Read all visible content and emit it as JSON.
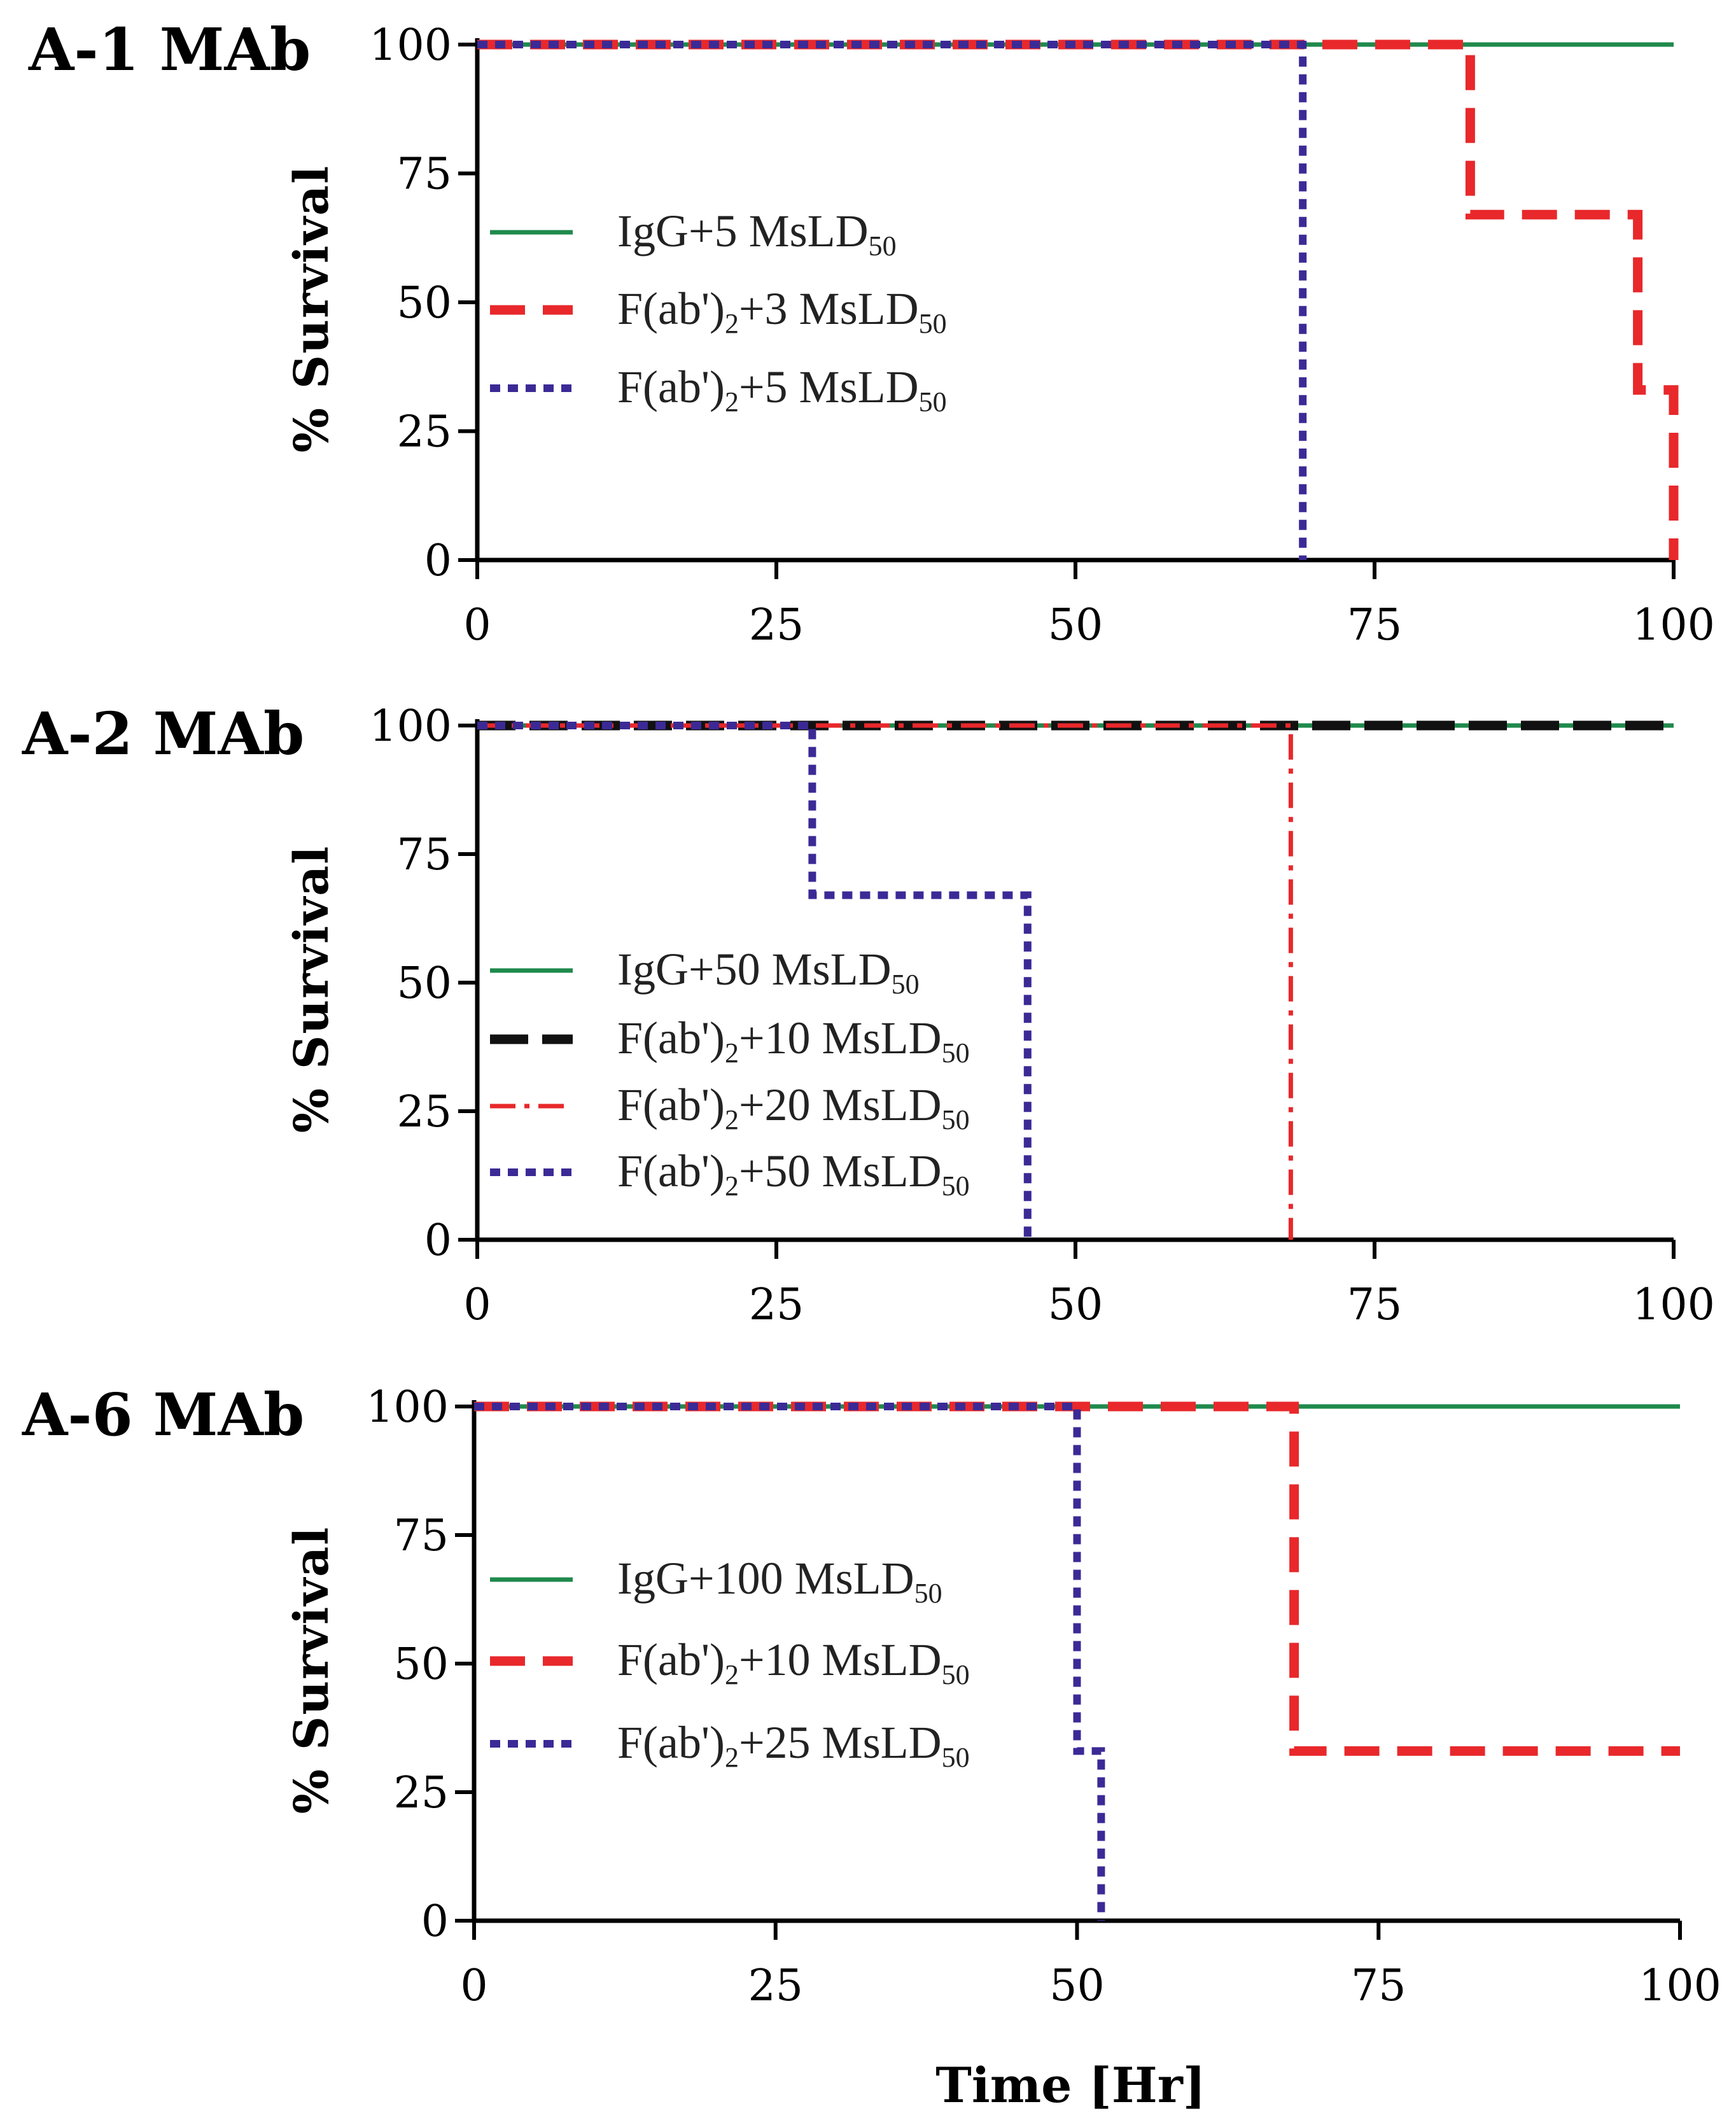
{
  "chart_data": [
    {
      "type": "line",
      "title": "A-1 MAb",
      "ylabel": "% Survival",
      "xlabel": "",
      "xlim": [
        0,
        100
      ],
      "ylim": [
        0,
        100
      ],
      "xticks": [
        "0",
        "25",
        "50",
        "75",
        "100"
      ],
      "yticks": [
        "0",
        "25",
        "50",
        "75",
        "100"
      ],
      "series": [
        {
          "name": "IgG+5 MsLD",
          "sub": "50",
          "color": "#1f8a4c",
          "style": "solid",
          "x": [
            0,
            100
          ],
          "y": [
            100,
            100
          ]
        },
        {
          "name": "F(ab')+3 MsLD",
          "name_pre": "F(ab')",
          "name_mid": "2",
          "name_post": "+3 MsLD",
          "sub": "50",
          "color": "#e8282b",
          "style": "dashed",
          "x": [
            0,
            83,
            83,
            97,
            97,
            100,
            100
          ],
          "y": [
            100,
            100,
            67,
            67,
            33,
            33,
            0
          ]
        },
        {
          "name": "F(ab')+5 MsLD",
          "name_pre": "F(ab')",
          "name_mid": "2",
          "name_post": "+5 MsLD",
          "sub": "50",
          "color": "#3b2a96",
          "style": "dotted",
          "x": [
            0,
            69,
            69
          ],
          "y": [
            100,
            100,
            0
          ]
        }
      ]
    },
    {
      "type": "line",
      "title": "A-2 MAb",
      "ylabel": "% Survival",
      "xlabel": "",
      "xlim": [
        0,
        100
      ],
      "ylim": [
        0,
        100
      ],
      "xticks": [
        "0",
        "25",
        "50",
        "75",
        "100"
      ],
      "yticks": [
        "0",
        "25",
        "50",
        "75",
        "100"
      ],
      "series": [
        {
          "name": "IgG+50 MsLD",
          "sub": "50",
          "color": "#1f8a4c",
          "style": "solid",
          "x": [
            0,
            100
          ],
          "y": [
            100,
            100
          ]
        },
        {
          "name": "F(ab')+10 MsLD",
          "name_pre": "F(ab')",
          "name_mid": "2",
          "name_post": "+10 MsLD",
          "sub": "50",
          "color": "#111111",
          "style": "longdash",
          "x": [
            0,
            100
          ],
          "y": [
            100,
            100
          ]
        },
        {
          "name": "F(ab')+20 MsLD",
          "name_pre": "F(ab')",
          "name_mid": "2",
          "name_post": "+20 MsLD",
          "sub": "50",
          "color": "#e8282b",
          "style": "dashdot",
          "x": [
            0,
            68,
            68
          ],
          "y": [
            100,
            100,
            0
          ]
        },
        {
          "name": "F(ab')+50 MsLD",
          "name_pre": "F(ab')",
          "name_mid": "2",
          "name_post": "+50 MsLD",
          "sub": "50",
          "color": "#3b2a96",
          "style": "dotted",
          "x": [
            0,
            28,
            28,
            46,
            46
          ],
          "y": [
            100,
            100,
            67,
            67,
            0
          ]
        }
      ]
    },
    {
      "type": "line",
      "title": "A-6 MAb",
      "ylabel": "% Survival",
      "xlabel": "Time [Hr]",
      "xlim": [
        0,
        100
      ],
      "ylim": [
        0,
        100
      ],
      "xticks": [
        "0",
        "25",
        "50",
        "75",
        "100"
      ],
      "yticks": [
        "0",
        "25",
        "50",
        "75",
        "100"
      ],
      "series": [
        {
          "name": "IgG+100 MsLD",
          "sub": "50",
          "color": "#1f8a4c",
          "style": "solid",
          "x": [
            0,
            100
          ],
          "y": [
            100,
            100
          ]
        },
        {
          "name": "F(ab')+10 MsLD",
          "name_pre": "F(ab')",
          "name_mid": "2",
          "name_post": "+10 MsLD",
          "sub": "50",
          "color": "#e8282b",
          "style": "dashed",
          "x": [
            0,
            68,
            68,
            100
          ],
          "y": [
            100,
            100,
            33,
            33
          ]
        },
        {
          "name": "F(ab')+25 MsLD",
          "name_pre": "F(ab')",
          "name_mid": "2",
          "name_post": "+25 MsLD",
          "sub": "50",
          "color": "#3b2a96",
          "style": "dotted",
          "x": [
            0,
            50,
            50,
            52,
            52
          ],
          "y": [
            100,
            100,
            33,
            33,
            0
          ]
        }
      ]
    }
  ]
}
